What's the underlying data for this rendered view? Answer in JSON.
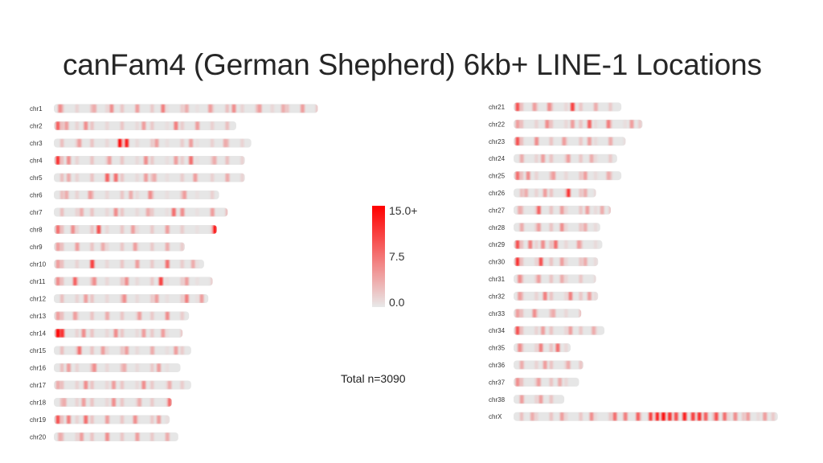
{
  "title": "canFam4 (German Shepherd) 6kb+ LINE-1 Locations",
  "total_label": "Total n=3090",
  "chart_data": {
    "type": "heatmap",
    "title": "canFam4 (German Shepherd) 6kb+ LINE-1 Locations",
    "description_label": "Total n=3090",
    "colors": {
      "low": "#e8e8e8",
      "high": "#ff0000"
    },
    "color_scale": {
      "min": 0.0,
      "max": 15.0,
      "ticks": [
        "15.0+",
        "7.5",
        "0.0"
      ]
    },
    "chromosomes": [
      {
        "name": "chr1",
        "length": 123,
        "hotspots": [
          [
            2,
            6
          ],
          [
            18,
            4
          ],
          [
            26,
            6
          ],
          [
            38,
            5
          ],
          [
            50,
            7
          ],
          [
            61,
            4
          ],
          [
            72,
            5
          ],
          [
            83,
            6
          ],
          [
            95,
            5
          ],
          [
            106,
            4
          ],
          [
            115,
            5
          ]
        ]
      },
      {
        "name": "chr2",
        "length": 85,
        "hotspots": [
          [
            1,
            9
          ],
          [
            5,
            5
          ],
          [
            14,
            6
          ],
          [
            41,
            5
          ],
          [
            56,
            7
          ],
          [
            66,
            5
          ]
        ]
      },
      {
        "name": "chr3",
        "length": 92,
        "hotspots": [
          [
            11,
            5
          ],
          [
            30,
            15
          ],
          [
            33,
            13
          ],
          [
            47,
            5
          ],
          [
            63,
            5
          ],
          [
            79,
            4
          ]
        ]
      },
      {
        "name": "chr4",
        "length": 89,
        "hotspots": [
          [
            1,
            12
          ],
          [
            6,
            6
          ],
          [
            25,
            5
          ],
          [
            42,
            6
          ],
          [
            56,
            5
          ],
          [
            63,
            8
          ],
          [
            74,
            4
          ]
        ]
      },
      {
        "name": "chr5",
        "length": 89,
        "hotspots": [
          [
            6,
            4
          ],
          [
            24,
            9
          ],
          [
            28,
            8
          ],
          [
            42,
            5
          ],
          [
            46,
            4
          ],
          [
            65,
            5
          ],
          [
            80,
            4
          ]
        ]
      },
      {
        "name": "chr6",
        "length": 77,
        "hotspots": [
          [
            5,
            4
          ],
          [
            16,
            5
          ],
          [
            35,
            4
          ],
          [
            44,
            6
          ],
          [
            60,
            5
          ]
        ]
      },
      {
        "name": "chr7",
        "length": 81,
        "hotspots": [
          [
            12,
            4
          ],
          [
            28,
            6
          ],
          [
            43,
            4
          ],
          [
            55,
            8
          ],
          [
            59,
            6
          ],
          [
            73,
            5
          ]
        ]
      },
      {
        "name": "chr8",
        "length": 76,
        "hotspots": [
          [
            1,
            8
          ],
          [
            8,
            6
          ],
          [
            20,
            10
          ],
          [
            36,
            5
          ],
          [
            52,
            5
          ],
          [
            74,
            14
          ]
        ]
      },
      {
        "name": "chr9",
        "length": 61,
        "hotspots": [
          [
            1,
            5
          ],
          [
            10,
            5
          ],
          [
            22,
            4
          ],
          [
            37,
            5
          ],
          [
            52,
            4
          ]
        ]
      },
      {
        "name": "chr10",
        "length": 70,
        "hotspots": [
          [
            1,
            5
          ],
          [
            17,
            11
          ],
          [
            38,
            5
          ],
          [
            52,
            8
          ],
          [
            64,
            4
          ]
        ]
      },
      {
        "name": "chr11",
        "length": 74,
        "hotspots": [
          [
            1,
            6
          ],
          [
            9,
            9
          ],
          [
            18,
            6
          ],
          [
            33,
            6
          ],
          [
            49,
            11
          ],
          [
            61,
            5
          ]
        ]
      },
      {
        "name": "chr12",
        "length": 72,
        "hotspots": [
          [
            14,
            5
          ],
          [
            32,
            6
          ],
          [
            47,
            5
          ],
          [
            61,
            7
          ],
          [
            68,
            5
          ]
        ]
      },
      {
        "name": "chr13",
        "length": 63,
        "hotspots": [
          [
            1,
            5
          ],
          [
            9,
            5
          ],
          [
            24,
            4
          ],
          [
            39,
            5
          ],
          [
            52,
            6
          ]
        ]
      },
      {
        "name": "chr14",
        "length": 60,
        "hotspots": [
          [
            1,
            15
          ],
          [
            3,
            12
          ],
          [
            13,
            6
          ],
          [
            28,
            6
          ],
          [
            41,
            5
          ],
          [
            50,
            5
          ]
        ]
      },
      {
        "name": "chr15",
        "length": 64,
        "hotspots": [
          [
            11,
            8
          ],
          [
            22,
            5
          ],
          [
            33,
            5
          ],
          [
            45,
            4
          ],
          [
            56,
            5
          ]
        ]
      },
      {
        "name": "chr16",
        "length": 59,
        "hotspots": [
          [
            6,
            5
          ],
          [
            18,
            6
          ],
          [
            32,
            4
          ],
          [
            48,
            5
          ]
        ]
      },
      {
        "name": "chr17",
        "length": 64,
        "hotspots": [
          [
            1,
            4
          ],
          [
            14,
            6
          ],
          [
            27,
            5
          ],
          [
            41,
            6
          ],
          [
            53,
            4
          ]
        ]
      },
      {
        "name": "chr18",
        "length": 55,
        "hotspots": [
          [
            4,
            4
          ],
          [
            13,
            5
          ],
          [
            27,
            6
          ],
          [
            39,
            4
          ],
          [
            53,
            8
          ]
        ]
      },
      {
        "name": "chr19",
        "length": 54,
        "hotspots": [
          [
            1,
            10
          ],
          [
            6,
            7
          ],
          [
            14,
            8
          ],
          [
            24,
            5
          ],
          [
            37,
            6
          ],
          [
            48,
            5
          ]
        ]
      },
      {
        "name": "chr20",
        "length": 58,
        "hotspots": [
          [
            2,
            4
          ],
          [
            12,
            5
          ],
          [
            24,
            6
          ],
          [
            38,
            5
          ],
          [
            52,
            4
          ]
        ]
      },
      {
        "name": "chr21",
        "length": 51,
        "hotspots": [
          [
            1,
            10
          ],
          [
            9,
            5
          ],
          [
            16,
            6
          ],
          [
            27,
            11
          ],
          [
            38,
            4
          ]
        ]
      },
      {
        "name": "chr22",
        "length": 61,
        "hotspots": [
          [
            1,
            5
          ],
          [
            15,
            6
          ],
          [
            27,
            5
          ],
          [
            35,
            9
          ],
          [
            44,
            7
          ],
          [
            55,
            5
          ]
        ]
      },
      {
        "name": "chr23",
        "length": 53,
        "hotspots": [
          [
            1,
            10
          ],
          [
            10,
            6
          ],
          [
            23,
            5
          ],
          [
            35,
            5
          ],
          [
            45,
            4
          ]
        ]
      },
      {
        "name": "chr24",
        "length": 49,
        "hotspots": [
          [
            3,
            4
          ],
          [
            13,
            5
          ],
          [
            25,
            5
          ],
          [
            36,
            4
          ]
        ]
      },
      {
        "name": "chr25",
        "length": 51,
        "hotspots": [
          [
            1,
            8
          ],
          [
            6,
            6
          ],
          [
            18,
            5
          ],
          [
            33,
            5
          ],
          [
            44,
            4
          ]
        ]
      },
      {
        "name": "chr26",
        "length": 39,
        "hotspots": [
          [
            5,
            4
          ],
          [
            14,
            5
          ],
          [
            25,
            12
          ],
          [
            33,
            4
          ]
        ]
      },
      {
        "name": "chr27",
        "length": 46,
        "hotspots": [
          [
            2,
            4
          ],
          [
            11,
            9
          ],
          [
            22,
            5
          ],
          [
            34,
            5
          ],
          [
            41,
            4
          ]
        ]
      },
      {
        "name": "chr28",
        "length": 41,
        "hotspots": [
          [
            3,
            4
          ],
          [
            11,
            5
          ],
          [
            22,
            6
          ],
          [
            33,
            4
          ]
        ]
      },
      {
        "name": "chr29",
        "length": 42,
        "hotspots": [
          [
            1,
            10
          ],
          [
            7,
            7
          ],
          [
            13,
            6
          ],
          [
            19,
            8
          ],
          [
            30,
            5
          ]
        ]
      },
      {
        "name": "chr30",
        "length": 40,
        "hotspots": [
          [
            1,
            12
          ],
          [
            12,
            10
          ],
          [
            22,
            5
          ],
          [
            33,
            4
          ]
        ]
      },
      {
        "name": "chr31",
        "length": 39,
        "hotspots": [
          [
            2,
            6
          ],
          [
            11,
            5
          ],
          [
            22,
            4
          ]
        ]
      },
      {
        "name": "chr32",
        "length": 40,
        "hotspots": [
          [
            2,
            5
          ],
          [
            14,
            7
          ],
          [
            26,
            7
          ],
          [
            35,
            5
          ]
        ]
      },
      {
        "name": "chr33",
        "length": 32,
        "hotspots": [
          [
            1,
            5
          ],
          [
            9,
            6
          ],
          [
            18,
            4
          ]
        ]
      },
      {
        "name": "chr34",
        "length": 43,
        "hotspots": [
          [
            1,
            10
          ],
          [
            13,
            5
          ],
          [
            26,
            5
          ],
          [
            37,
            4
          ]
        ]
      },
      {
        "name": "chr35",
        "length": 27,
        "hotspots": [
          [
            2,
            6
          ],
          [
            12,
            7
          ],
          [
            20,
            8
          ]
        ]
      },
      {
        "name": "chr36",
        "length": 33,
        "hotspots": [
          [
            3,
            4
          ],
          [
            14,
            5
          ],
          [
            25,
            4
          ]
        ]
      },
      {
        "name": "chr37",
        "length": 31,
        "hotspots": [
          [
            1,
            6
          ],
          [
            11,
            5
          ],
          [
            21,
            4
          ]
        ]
      },
      {
        "name": "chr38",
        "length": 24,
        "hotspots": [
          [
            3,
            5
          ],
          [
            12,
            5
          ]
        ]
      },
      {
        "name": "chrX",
        "length": 125,
        "hotspots": [
          [
            8,
            4
          ],
          [
            22,
            5
          ],
          [
            36,
            6
          ],
          [
            47,
            8
          ],
          [
            52,
            7
          ],
          [
            58,
            9
          ],
          [
            64,
            11
          ],
          [
            67,
            13
          ],
          [
            70,
            14
          ],
          [
            73,
            12
          ],
          [
            76,
            10
          ],
          [
            80,
            13
          ],
          [
            84,
            11
          ],
          [
            87,
            12
          ],
          [
            90,
            9
          ],
          [
            95,
            10
          ],
          [
            99,
            8
          ],
          [
            104,
            6
          ],
          [
            110,
            5
          ],
          [
            118,
            5
          ]
        ]
      }
    ]
  }
}
